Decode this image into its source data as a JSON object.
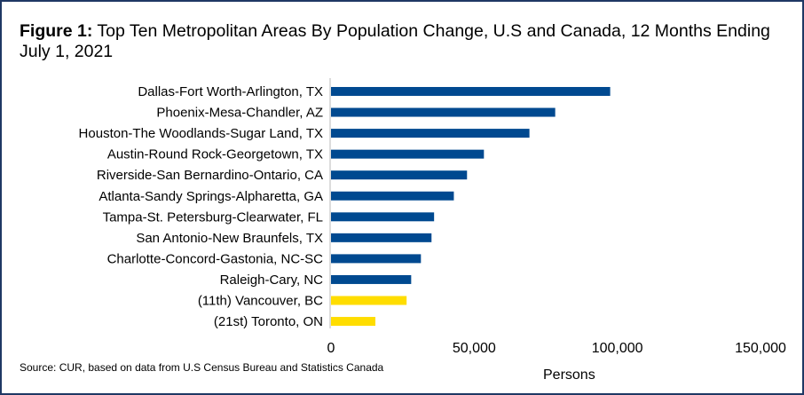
{
  "chart_data": {
    "type": "bar",
    "orientation": "horizontal",
    "title_prefix": "Figure 1:",
    "title": "Top Ten Metropolitan Areas By Population Change, U.S and Canada, 12 Months Ending July 1, 2021",
    "categories": [
      "Dallas-Fort Worth-Arlington, TX",
      "Phoenix-Mesa-Chandler, AZ",
      "Houston-The Woodlands-Sugar Land, TX",
      "Austin-Round Rock-Georgetown, TX",
      "Riverside-San Bernardino-Ontario, CA",
      "Atlanta-Sandy Springs-Alpharetta, GA",
      "Tampa-St. Petersburg-Clearwater, FL",
      "San Antonio-New Braunfels, TX",
      "Charlotte-Concord-Gastonia, NC-SC",
      "Raleigh-Cary, NC",
      "(11th) Vancouver, BC",
      "(21st) Toronto, ON"
    ],
    "values": [
      97500,
      78300,
      69300,
      53400,
      47500,
      42900,
      36000,
      35100,
      31400,
      28000,
      26400,
      15500
    ],
    "colors": [
      "#004990",
      "#004990",
      "#004990",
      "#004990",
      "#004990",
      "#004990",
      "#004990",
      "#004990",
      "#004990",
      "#004990",
      "#ffdd00",
      "#ffdd00"
    ],
    "xlabel": "Persons",
    "xlim": [
      0,
      150000
    ],
    "xticks": [
      0,
      50000,
      100000,
      150000
    ],
    "xtick_labels": [
      "0",
      "50,000",
      "100,000",
      "150,000"
    ],
    "grid": false,
    "source": "Source: CUR, based on data from U.S Census Bureau and Statistics Canada"
  }
}
